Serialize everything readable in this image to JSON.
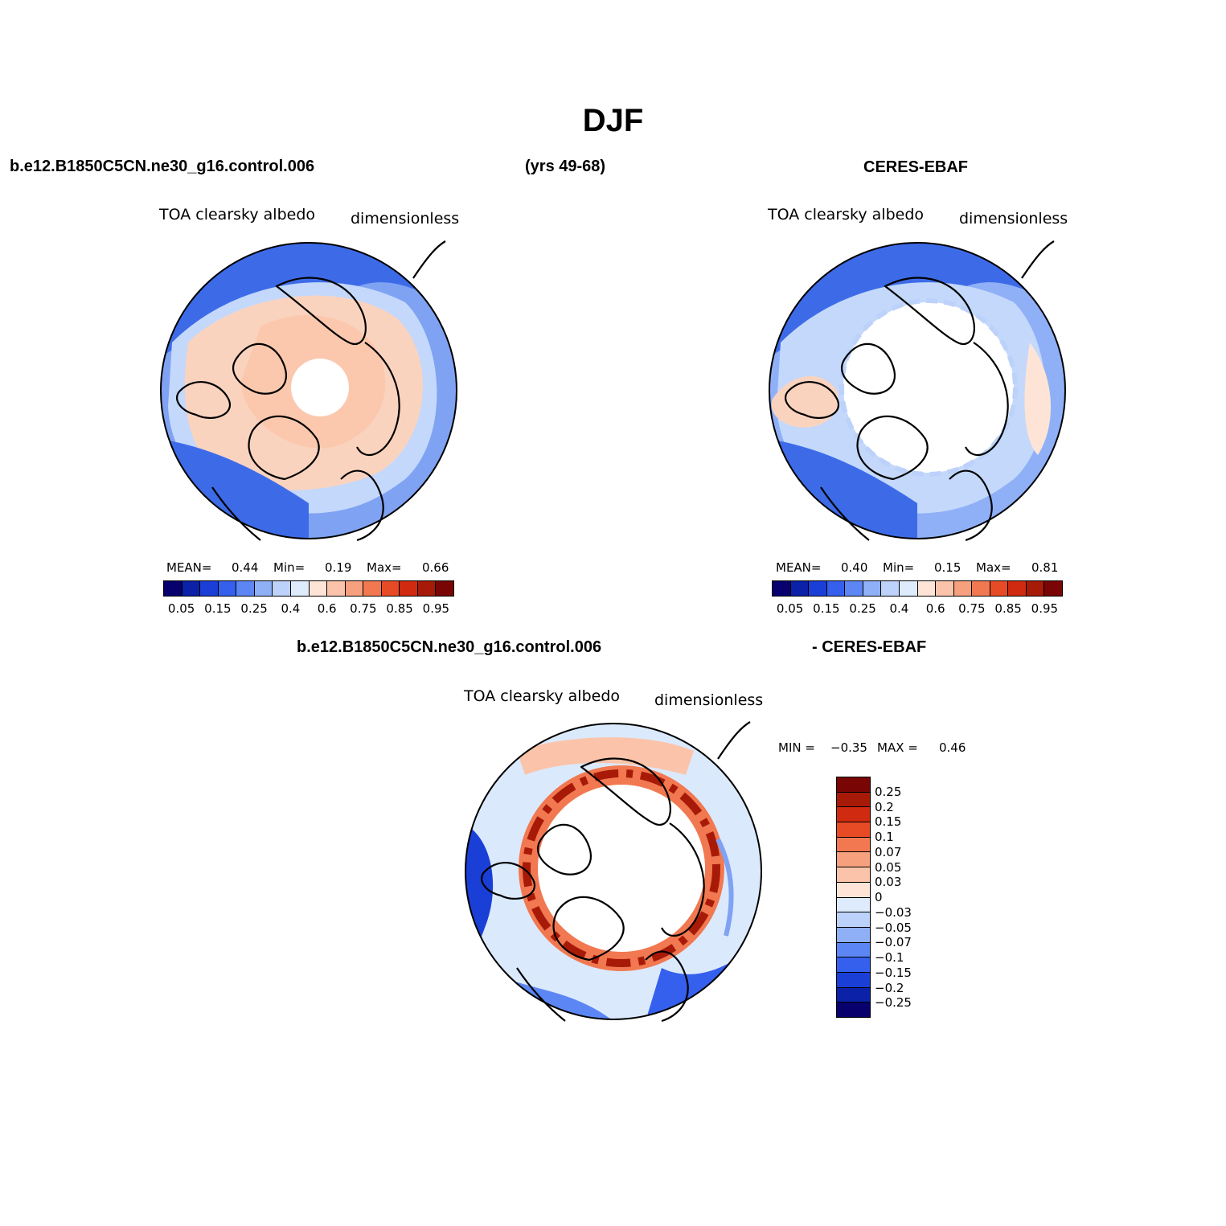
{
  "title": "DJF",
  "header": {
    "case": "b.e12.B1850C5CN.ne30_g16.control.006",
    "years": "(yrs 49-68)",
    "obs": "CERES-EBAF"
  },
  "panels": [
    {
      "variable": "TOA clearsky albedo",
      "units": "dimensionless",
      "stats": {
        "mean_label": "MEAN=",
        "mean": "0.44",
        "min_label": "Min=",
        "min": "0.19",
        "max_label": "Max=",
        "max": "0.66"
      }
    },
    {
      "variable": "TOA clearsky albedo",
      "units": "dimensionless",
      "stats": {
        "mean_label": "MEAN=",
        "mean": "0.40",
        "min_label": "Min=",
        "min": "0.15",
        "max_label": "Max=",
        "max": "0.81"
      }
    }
  ],
  "colorbar": {
    "colors": [
      "#08006d",
      "#0a21a8",
      "#1a3fd6",
      "#3560ee",
      "#5b86f4",
      "#8fb0f7",
      "#bcd2fa",
      "#ddebfd",
      "#fde4d6",
      "#fbc4aa",
      "#f6a07e",
      "#f17850",
      "#e74b25",
      "#d02a10",
      "#a81a08",
      "#7a0505"
    ],
    "ticks": [
      "0.05",
      "0.15",
      "0.25",
      "0.4",
      "0.6",
      "0.75",
      "0.85",
      "0.95"
    ]
  },
  "difference": {
    "title_left": "b.e12.B1850C5CN.ne30_g16.control.006",
    "title_right": "- CERES-EBAF",
    "variable": "TOA clearsky albedo",
    "units": "dimensionless",
    "min_label": "MIN =",
    "min": "−0.35",
    "max_label": "MAX =",
    "max": "0.46",
    "colorbar": {
      "colors": [
        "#7a0505",
        "#a81a08",
        "#d02a10",
        "#e74b25",
        "#f17850",
        "#f6a07e",
        "#fbc4aa",
        "#fde4d6",
        "#ddebfd",
        "#bcd2fa",
        "#8fb0f7",
        "#5b86f4",
        "#3560ee",
        "#1a3fd6",
        "#0a21a8",
        "#08006d"
      ],
      "ticks": [
        "0.25",
        "0.2",
        "0.15",
        "0.1",
        "0.07",
        "0.05",
        "0.03",
        "0",
        "−0.03",
        "−0.05",
        "−0.07",
        "−0.1",
        "−0.15",
        "−0.2",
        "−0.25"
      ]
    }
  }
}
